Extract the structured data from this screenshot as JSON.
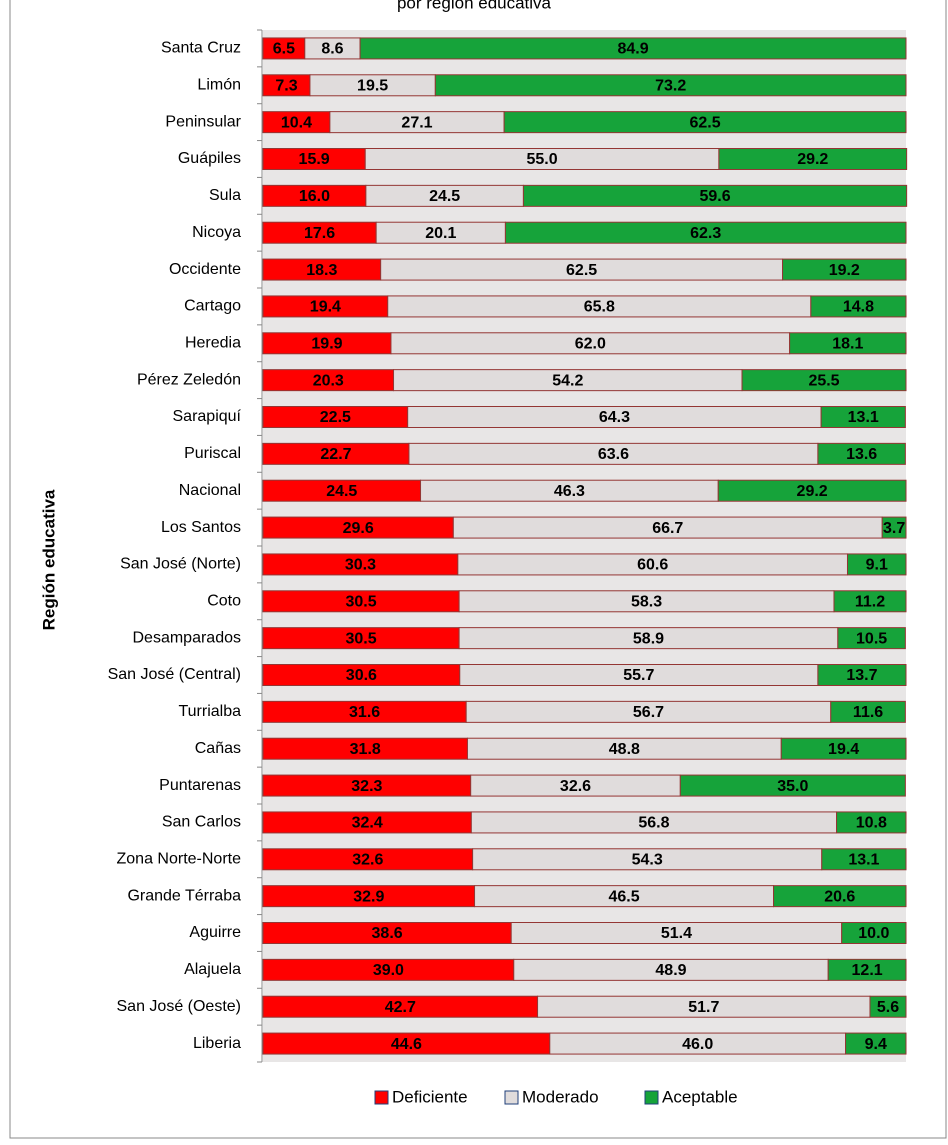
{
  "chart_data": {
    "type": "stacked-bar-horizontal",
    "title": "por región educativa",
    "ylabel": "Región   educativa",
    "categories": [
      "Santa Cruz",
      "Limón",
      "Peninsular",
      "Guápiles",
      "Sula",
      "Nicoya",
      "Occidente",
      "Cartago",
      "Heredia",
      "Pérez Zeledón",
      "Sarapiquí",
      "Puriscal",
      "Nacional",
      "Los Santos",
      "San José (Norte)",
      "Coto",
      "Desamparados",
      "San José (Central)",
      "Turrialba",
      "Cañas",
      "Puntarenas",
      "San Carlos",
      "Zona Norte-Norte",
      "Grande Térraba",
      "Aguirre",
      "Alajuela",
      "San José (Oeste)",
      "Liberia"
    ],
    "xlim": [
      0,
      100
    ],
    "legend": "bottom",
    "series": [
      {
        "name": "Deficiente",
        "color": "#ff0000",
        "values": [
          6.5,
          7.3,
          10.4,
          15.9,
          16.0,
          17.6,
          18.3,
          19.4,
          19.9,
          20.3,
          22.5,
          22.7,
          24.5,
          29.6,
          30.3,
          30.5,
          30.5,
          30.6,
          31.6,
          31.8,
          32.3,
          32.4,
          32.6,
          32.9,
          38.6,
          39.0,
          42.7,
          44.6
        ],
        "value_labels": [
          "6.5",
          "7.3",
          "10.4",
          "15.9",
          "16.0",
          "17.6",
          "18.3",
          "19.4",
          "19.9",
          "20.3",
          "22.5",
          "22.7",
          "24.5",
          "29.6",
          "30.3",
          "30.5",
          "30.5",
          "30.6",
          "31.6",
          "31.8",
          "32.3",
          "32.4",
          "32.6",
          "32.9",
          "38.6",
          "39.0",
          "42.7",
          "44.6"
        ]
      },
      {
        "name": "Moderado",
        "color": "#e0dcdc",
        "values": [
          8.6,
          19.5,
          27.1,
          55.0,
          24.5,
          20.1,
          62.5,
          65.8,
          62.0,
          54.2,
          64.3,
          63.6,
          46.3,
          66.7,
          60.6,
          58.3,
          58.9,
          55.7,
          56.7,
          48.8,
          32.6,
          56.8,
          54.3,
          46.5,
          51.4,
          48.9,
          51.7,
          46.0
        ],
        "value_labels": [
          "8.6",
          "19.5",
          "27.1",
          "55.0",
          "24.5",
          "20.1",
          "62.5",
          "65.8",
          "62.0",
          "54.2",
          "64.3",
          "63.6",
          "46.3",
          "66.7",
          "60.6",
          "58.3",
          "58.9",
          "55.7",
          "56.7",
          "48.8",
          "32.6",
          "56.8",
          "54.3",
          "46.5",
          "51.4",
          "48.9",
          "51.7",
          "46.0"
        ]
      },
      {
        "name": "Aceptable",
        "color": "#16a33a",
        "values": [
          84.9,
          73.2,
          62.5,
          29.2,
          59.6,
          62.3,
          19.2,
          14.8,
          18.1,
          25.5,
          13.1,
          13.6,
          29.2,
          3.7,
          9.1,
          11.2,
          10.5,
          13.7,
          11.6,
          19.4,
          35.0,
          10.8,
          13.1,
          20.6,
          10.0,
          12.1,
          5.6,
          9.4
        ],
        "value_labels": [
          "84.9",
          "73.2",
          "62.5",
          "29.2",
          "59.6",
          "62.3",
          "19.2",
          "14.8",
          "18.1",
          "25.5",
          "13.1",
          "13.6",
          "29.2",
          "3.7",
          "9.1",
          "11.2",
          "10.5",
          "13.7",
          "11.6",
          "19.4",
          "35.0",
          "10.8",
          "13.1",
          "20.6",
          "10.0",
          "12.1",
          "5.6",
          "9.4"
        ]
      }
    ]
  }
}
